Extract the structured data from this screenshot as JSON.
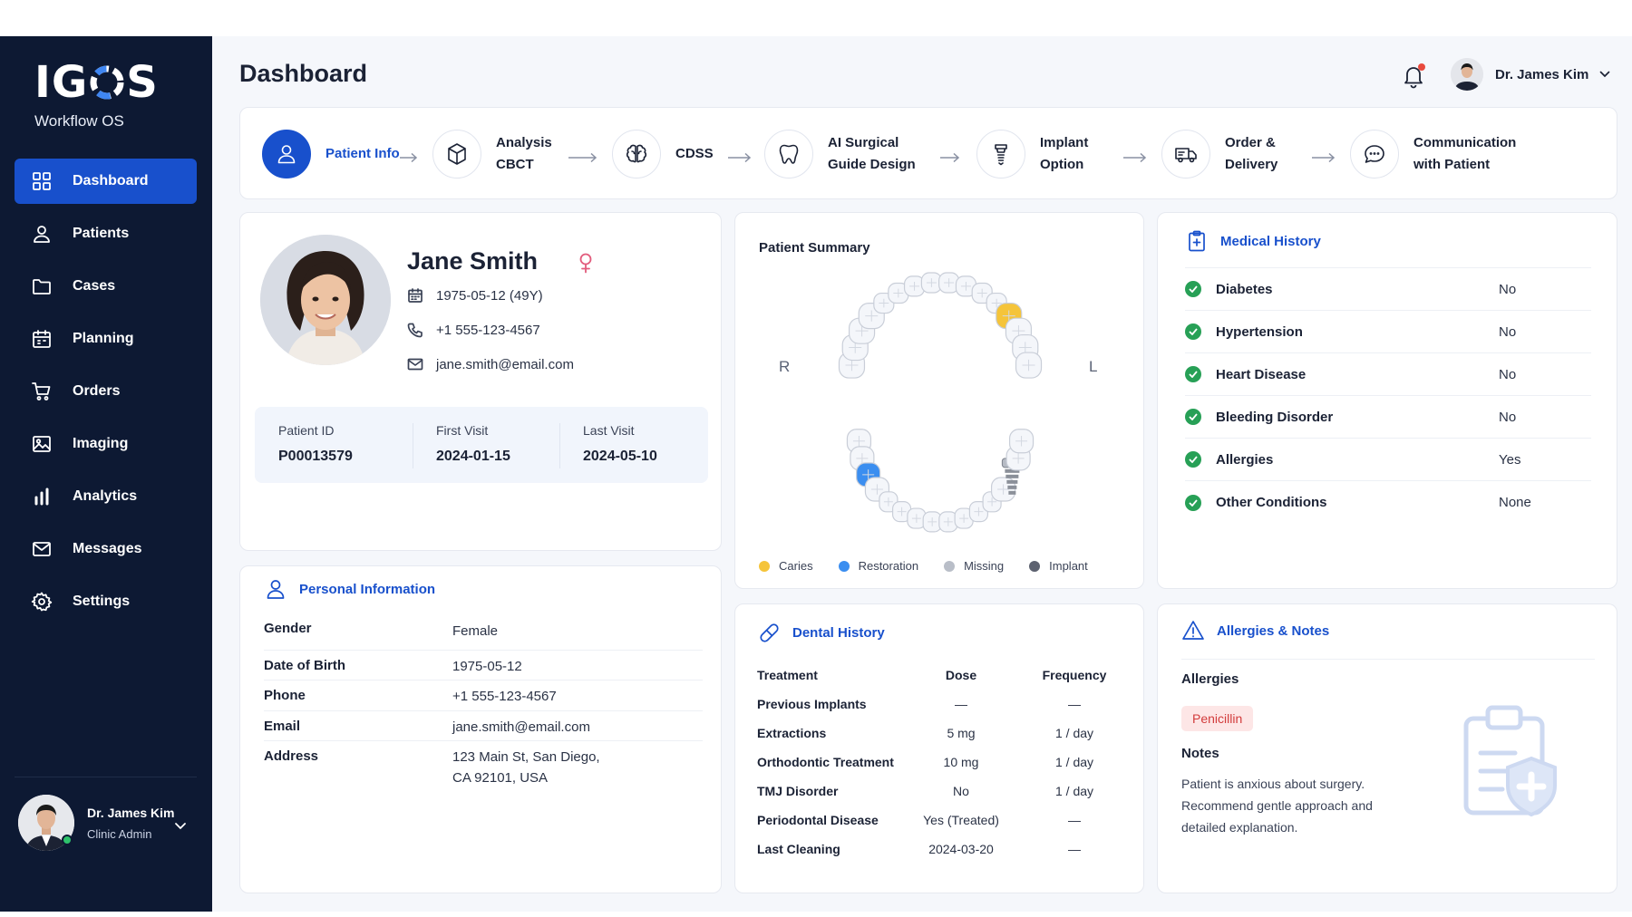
{
  "app": {
    "brand": {
      "letters_left": "IG",
      "letters_right": "S",
      "subtitle": "Workflow OS"
    },
    "page_title": "Dashboard"
  },
  "sidebar": {
    "items": [
      {
        "label": "Dashboard",
        "icon": "grid-icon",
        "active": true
      },
      {
        "label": "Patients",
        "icon": "user-icon"
      },
      {
        "label": "Cases",
        "icon": "folder-icon"
      },
      {
        "label": "Planning",
        "icon": "calendar-icon"
      },
      {
        "label": "Orders",
        "icon": "cart-icon"
      },
      {
        "label": "Imaging",
        "icon": "image-icon"
      },
      {
        "label": "Analytics",
        "icon": "bar-chart-icon"
      },
      {
        "label": "Messages",
        "icon": "mail-icon"
      },
      {
        "label": "Settings",
        "icon": "gear-icon"
      }
    ],
    "user": {
      "name": "Dr. James Kim",
      "role": "Clinic Admin",
      "status": "online"
    }
  },
  "header": {
    "user_name": "Dr. James Kim",
    "notification_icon": "bell-icon",
    "has_notifications": true
  },
  "workflow": {
    "steps": [
      {
        "line1": "Patient Info",
        "line2": "",
        "icon": "user-icon",
        "active": true
      },
      {
        "line1": "Analysis",
        "line2": "CBCT",
        "icon": "cube-icon"
      },
      {
        "line1": "CDSS",
        "line2": "",
        "icon": "brain-icon"
      },
      {
        "line1": "AI Surgical",
        "line2": "Guide Design",
        "icon": "tooth-icon"
      },
      {
        "line1": "Implant",
        "line2": "Option",
        "icon": "implant-icon"
      },
      {
        "line1": "Order &",
        "line2": "Delivery",
        "icon": "truck-icon"
      },
      {
        "line1": "Communication",
        "line2": "with Patient",
        "icon": "chat-icon"
      }
    ]
  },
  "patient": {
    "name": "Jane Smith",
    "gender_icon": "female-icon",
    "dob_line": "1975-05-12 (49Y)",
    "phone": "+1 555-123-4567",
    "email": "jane.smith@email.com",
    "ids": [
      {
        "label": "Patient ID",
        "value": "P00013579"
      },
      {
        "label": "First Visit",
        "value": "2024-01-15"
      },
      {
        "label": "Last Visit",
        "value": "2024-05-10"
      }
    ]
  },
  "personal_info": {
    "title": "Personal Information",
    "rows": [
      {
        "key": "Gender",
        "value": "Female",
        "value2": ""
      },
      {
        "key": "Date of Birth",
        "value": "1975-05-12",
        "value2": ""
      },
      {
        "key": "Phone",
        "value": "+1 555-123-4567",
        "value2": ""
      },
      {
        "key": "Email",
        "value": "jane.smith@email.com",
        "value2": ""
      },
      {
        "key": "Address",
        "value": "123 Main St, San Diego,",
        "value2": "CA 92101, USA"
      }
    ]
  },
  "summary": {
    "title": "Patient Summary",
    "right_label": "R",
    "left_label": "L",
    "legend": [
      {
        "label": "Caries",
        "color": "#f5c43a"
      },
      {
        "label": "Restoration",
        "color": "#3b8ef0"
      },
      {
        "label": "Missing",
        "color": "#b9bec8"
      },
      {
        "label": "Implant",
        "color": "#5d6270"
      }
    ],
    "colors": {
      "tooth": "#f4f6fa",
      "caries": "#f5c43a",
      "restoration": "#3b8ef0",
      "implant": "#8b9099"
    }
  },
  "dental_history": {
    "title": "Dental History",
    "headers": {
      "treatment": "Treatment",
      "dose": "Dose",
      "frequency": "Frequency"
    },
    "rows": [
      {
        "treatment": "Previous Implants",
        "dose": "—",
        "frequency": "—"
      },
      {
        "treatment": "Extractions",
        "dose": "5 mg",
        "frequency": "1 / day"
      },
      {
        "treatment": "Orthodontic Treatment",
        "dose": "10 mg",
        "frequency": "1 / day"
      },
      {
        "treatment": "TMJ Disorder",
        "dose": "No",
        "frequency": "1 / day"
      },
      {
        "treatment": "Periodontal Disease",
        "dose": "Yes (Treated)",
        "frequency": "—"
      },
      {
        "treatment": "Last Cleaning",
        "dose": "2024-03-20",
        "frequency": "—"
      }
    ]
  },
  "medical_history": {
    "title": "Medical History",
    "rows": [
      {
        "condition": "Diabetes",
        "value": "No"
      },
      {
        "condition": "Hypertension",
        "value": "No"
      },
      {
        "condition": "Heart Disease",
        "value": "No"
      },
      {
        "condition": "Bleeding Disorder",
        "value": "No"
      },
      {
        "condition": "Allergies",
        "value": "Yes"
      },
      {
        "condition": "Other Conditions",
        "value": "None"
      }
    ]
  },
  "allergies_notes": {
    "title": "Allergies & Notes",
    "allergies_label": "Allergies",
    "allergy_chip": "Penicillin",
    "notes_label": "Notes",
    "notes_text": "Patient is anxious about surgery. Recommend gentle approach and detailed explanation."
  },
  "theme": {
    "accent": "#1850cc",
    "sidebar_bg": "#0d1933",
    "success": "#27a056",
    "danger": "#d23b3b"
  }
}
